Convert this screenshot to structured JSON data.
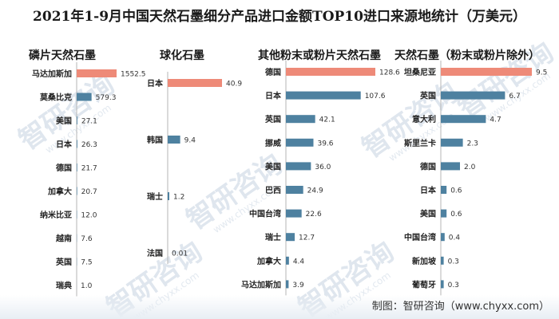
{
  "title": "2021年1-9月中国天然石墨细分产品进口金额TOP10进口来源地统计（万美元）",
  "source": "制图：智研咨询（www.chyxx.com）",
  "watermark": {
    "text": "智研咨询",
    "url": "www.chyxx.com"
  },
  "colors": {
    "highlight": "#ee8a78",
    "bar": "#4e81a0",
    "label": "#222222"
  },
  "chart_data": [
    {
      "type": "bar",
      "orientation": "horizontal",
      "title": "磷片天然石墨",
      "categories": [
        "马达加斯加",
        "莫桑比克",
        "美国",
        "日本",
        "德国",
        "加拿大",
        "纳米比亚",
        "越南",
        "英国",
        "瑞典"
      ],
      "values": [
        1552.5,
        579.3,
        27.1,
        26.3,
        21.7,
        20.7,
        12.0,
        7.6,
        7.5,
        1.0
      ],
      "value_labels": [
        "1552.5",
        "579.3",
        "27.1",
        "26.3",
        "21.7",
        "20.7",
        "12.0",
        "7.6",
        "7.5",
        "1.0"
      ],
      "xlim": [
        0,
        1552.5
      ]
    },
    {
      "type": "bar",
      "orientation": "horizontal",
      "title": "球化石墨",
      "categories": [
        "日本",
        "韩国",
        "瑞士",
        "法国"
      ],
      "values": [
        40.9,
        9.4,
        1.2,
        0.01
      ],
      "value_labels": [
        "40.9",
        "9.4",
        "1.2",
        "0.01"
      ],
      "xlim": [
        0,
        40.9
      ]
    },
    {
      "type": "bar",
      "orientation": "horizontal",
      "title": "其他粉末或粉片天然石墨",
      "categories": [
        "德国",
        "日本",
        "英国",
        "挪威",
        "美国",
        "巴西",
        "中国台湾",
        "瑞士",
        "加拿大",
        "马达加斯加"
      ],
      "values": [
        128.6,
        107.6,
        42.1,
        39.6,
        36.0,
        24.9,
        22.6,
        12.7,
        4.4,
        3.9
      ],
      "value_labels": [
        "128.6",
        "107.6",
        "42.1",
        "39.6",
        "36.0",
        "24.9",
        "22.6",
        "12.7",
        "4.4",
        "3.9"
      ],
      "xlim": [
        0,
        128.6
      ]
    },
    {
      "type": "bar",
      "orientation": "horizontal",
      "title": "天然石墨（粉末或粉片除外）",
      "categories": [
        "坦桑尼亚",
        "英国",
        "意大利",
        "斯里兰卡",
        "德国",
        "日本",
        "美国",
        "中国台湾",
        "新加坡",
        "葡萄牙"
      ],
      "values": [
        9.5,
        6.7,
        4.7,
        2.3,
        2.0,
        0.6,
        0.6,
        0.4,
        0.3,
        0.3
      ],
      "value_labels": [
        "9.5",
        "6.7",
        "4.7",
        "2.3",
        "2.0",
        "0.6",
        "0.6",
        "0.4",
        "0.3",
        "0.3"
      ],
      "xlim": [
        0,
        9.5
      ]
    }
  ]
}
